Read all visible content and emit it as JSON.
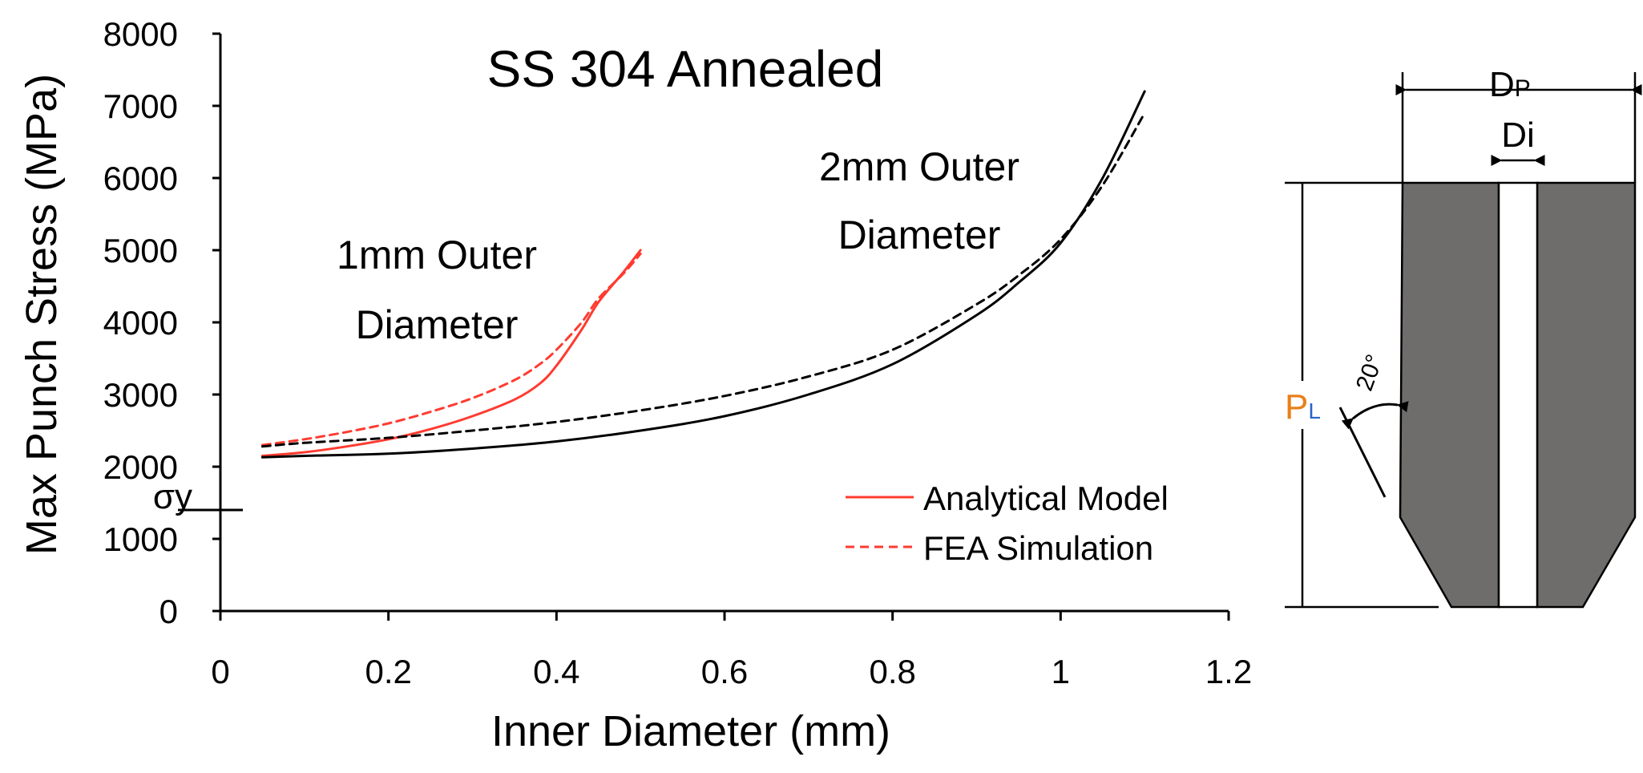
{
  "chart_data": {
    "type": "line",
    "title": "SS 304 Annealed",
    "xlabel": "Inner Diameter (mm)",
    "ylabel": "Max Punch Stress (MPa)",
    "xlim": [
      0,
      1.2
    ],
    "ylim": [
      0,
      8000
    ],
    "x_ticks": [
      "0",
      "0.2",
      "0.4",
      "0.6",
      "0.8",
      "1",
      "1.2"
    ],
    "y_ticks": [
      "0",
      "1000",
      "2000",
      "3000",
      "4000",
      "5000",
      "6000",
      "7000",
      "8000"
    ],
    "yield_marker": {
      "label": "σy",
      "value": 1400
    },
    "legend": [
      {
        "label": "Analytical Model",
        "style": "solid",
        "color": "#ff3b30"
      },
      {
        "label": "FEA Simulation",
        "style": "dashed",
        "color": "#ff3b30"
      }
    ],
    "groups": [
      {
        "label_line1": "1mm Outer",
        "label_line2": "Diameter",
        "color": "#ff3b30",
        "series": [
          {
            "name": "Analytical Model",
            "style": "solid",
            "x": [
              0.05,
              0.1,
              0.15,
              0.2,
              0.25,
              0.3,
              0.35,
              0.38,
              0.4,
              0.43,
              0.45,
              0.48,
              0.5
            ],
            "y": [
              2150,
              2200,
              2280,
              2380,
              2520,
              2700,
              2930,
              3150,
              3400,
              3900,
              4280,
              4700,
              5000
            ]
          },
          {
            "name": "FEA Simulation",
            "style": "dashed",
            "x": [
              0.05,
              0.1,
              0.15,
              0.2,
              0.25,
              0.3,
              0.35,
              0.38,
              0.4,
              0.43,
              0.45,
              0.48,
              0.5
            ],
            "y": [
              2300,
              2380,
              2480,
              2600,
              2760,
              2950,
              3200,
              3420,
              3620,
              4000,
              4330,
              4680,
              4950
            ]
          }
        ]
      },
      {
        "label_line1": "2mm Outer",
        "label_line2": "Diameter",
        "color": "#000000",
        "series": [
          {
            "name": "Analytical Model",
            "style": "solid",
            "x": [
              0.05,
              0.1,
              0.2,
              0.3,
              0.4,
              0.5,
              0.6,
              0.7,
              0.8,
              0.9,
              0.95,
              1.0,
              1.05,
              1.1
            ],
            "y": [
              2130,
              2150,
              2180,
              2250,
              2350,
              2500,
              2700,
              3000,
              3420,
              4100,
              4550,
              5100,
              6000,
              7200
            ]
          },
          {
            "name": "FEA Simulation",
            "style": "dashed",
            "x": [
              0.05,
              0.1,
              0.2,
              0.3,
              0.4,
              0.5,
              0.6,
              0.7,
              0.8,
              0.9,
              0.95,
              1.0,
              1.05,
              1.1
            ],
            "y": [
              2280,
              2330,
              2400,
              2500,
              2620,
              2780,
              2980,
              3250,
              3620,
              4250,
              4650,
              5150,
              5900,
              6900
            ]
          }
        ]
      }
    ]
  },
  "diagram": {
    "dp_label": "D",
    "dp_sub": "P",
    "di_label": "Di",
    "pl_label": "P",
    "pl_sub": "L",
    "angle_label": "20°"
  }
}
